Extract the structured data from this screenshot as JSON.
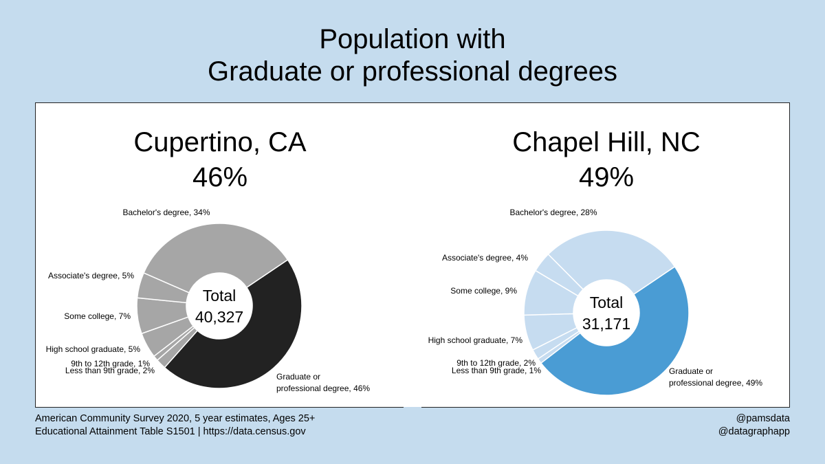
{
  "title": {
    "line1": "Population with",
    "line2": "Graduate or professional degrees"
  },
  "chart_data": [
    {
      "type": "pie",
      "title": "Cupertino, CA",
      "headline_value": "46%",
      "center_label": "Total",
      "center_value": "40,327",
      "colors": {
        "highlight": "#222222",
        "other": "#a6a6a6"
      },
      "slices": [
        {
          "name": "Graduate or professional degree",
          "value": 46,
          "label": "Graduate or professional degree, 46%",
          "highlight": true
        },
        {
          "name": "Less than 9th grade",
          "value": 2,
          "label": "Less than 9th grade, 2%"
        },
        {
          "name": "9th to 12th grade",
          "value": 1,
          "label": "9th to 12th grade, 1%"
        },
        {
          "name": "High school graduate",
          "value": 5,
          "label": "High school graduate, 5%"
        },
        {
          "name": "Some college",
          "value": 7,
          "label": "Some college, 7%"
        },
        {
          "name": "Associate's degree",
          "value": 5,
          "label": "Associate's degree, 5%"
        },
        {
          "name": "Bachelor's degree",
          "value": 34,
          "label": "Bachelor's degree, 34%"
        }
      ]
    },
    {
      "type": "pie",
      "title": "Chapel Hill, NC",
      "headline_value": "49%",
      "center_label": "Total",
      "center_value": "31,171",
      "colors": {
        "highlight": "#4a9cd4",
        "other": "#c6dcf0"
      },
      "slices": [
        {
          "name": "Graduate or professional degree",
          "value": 49,
          "label": "Graduate or professional degree, 49%",
          "highlight": true
        },
        {
          "name": "Less than 9th grade",
          "value": 1,
          "label": "Less than 9th grade, 1%"
        },
        {
          "name": "9th to 12th grade",
          "value": 2,
          "label": "9th to 12th grade, 2%"
        },
        {
          "name": "High school graduate",
          "value": 7,
          "label": "High school graduate, 7%"
        },
        {
          "name": "Some college",
          "value": 9,
          "label": "Some college, 9%"
        },
        {
          "name": "Associate's degree",
          "value": 4,
          "label": "Associate's degree, 4%"
        },
        {
          "name": "Bachelor's degree",
          "value": 28,
          "label": "Bachelor's degree, 28%"
        }
      ]
    }
  ],
  "footer": {
    "source_line1": "American Community Survey 2020, 5 year estimates, Ages 25+",
    "source_line2": "Educational Attainment Table S1501 |  https://data.census.gov",
    "credit_line1": "@pamsdata",
    "credit_line2": "@datagraphapp"
  }
}
